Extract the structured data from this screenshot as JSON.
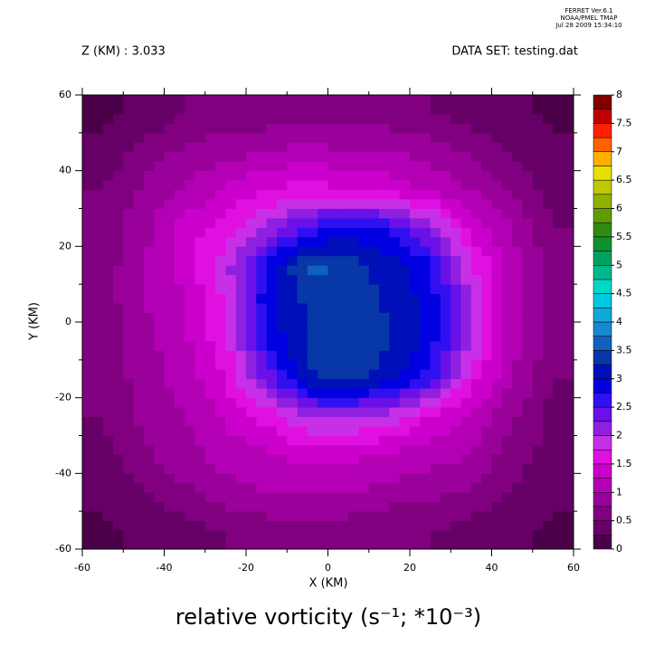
{
  "chart_data": {
    "type": "contour",
    "title": "relative vorticity (s⁻¹; *10⁻³)",
    "annotations": [
      "FERRET  Ver.6.1",
      "NOAA/PMEL TMAP",
      "Jul 28 2009 15:34:10"
    ],
    "subtitle_left": "Z (KM) : 3.033",
    "subtitle_right": "DATA SET: testing.dat",
    "xlabel": "X (KM)",
    "ylabel": "Y (KM)",
    "xlim": [
      -60,
      60
    ],
    "ylim": [
      -60,
      60
    ],
    "xticks": [
      -60,
      -40,
      -20,
      0,
      20,
      40,
      60
    ],
    "yticks": [
      -60,
      -40,
      -20,
      0,
      20,
      40,
      60
    ],
    "xminorticks": [
      -50,
      -30,
      -10,
      10,
      30,
      50
    ],
    "yminorticks": [
      -50,
      -30,
      -10,
      10,
      30,
      50
    ],
    "x": [
      -55,
      -45,
      -35,
      -25,
      -15,
      -5,
      5,
      15,
      25,
      35,
      45,
      55
    ],
    "y": [
      55,
      45,
      35,
      25,
      15,
      5,
      -5,
      -15,
      -25,
      -35,
      -45,
      -55
    ],
    "z": [
      [
        0.2,
        0.3,
        0.5,
        0.6,
        0.6,
        0.7,
        0.7,
        0.6,
        0.5,
        0.4,
        0.3,
        0.2
      ],
      [
        0.3,
        0.6,
        0.8,
        0.9,
        1.0,
        1.1,
        1.0,
        1.0,
        0.9,
        0.7,
        0.5,
        0.3
      ],
      [
        0.5,
        0.8,
        1.0,
        1.3,
        1.5,
        1.6,
        1.5,
        1.4,
        1.2,
        1.0,
        0.7,
        0.4
      ],
      [
        0.6,
        0.9,
        1.4,
        1.6,
        2.0,
        2.6,
        2.8,
        2.7,
        2.2,
        1.4,
        1.0,
        0.5
      ],
      [
        0.6,
        1.0,
        1.4,
        1.9,
        2.8,
        3.6,
        3.4,
        3.1,
        2.8,
        1.8,
        1.1,
        0.6
      ],
      [
        0.6,
        1.0,
        1.2,
        1.8,
        2.9,
        3.3,
        3.4,
        3.2,
        2.9,
        2.0,
        1.1,
        0.6
      ],
      [
        0.6,
        0.9,
        1.2,
        1.7,
        2.8,
        3.3,
        3.4,
        3.3,
        2.9,
        2.0,
        1.1,
        0.6
      ],
      [
        0.5,
        0.9,
        1.1,
        1.5,
        2.3,
        3.2,
        3.4,
        3.1,
        2.6,
        1.6,
        1.0,
        0.5
      ],
      [
        0.5,
        0.8,
        1.0,
        1.3,
        1.6,
        2.0,
        2.1,
        1.9,
        1.5,
        1.2,
        0.8,
        0.4
      ],
      [
        0.4,
        0.7,
        0.9,
        1.1,
        1.2,
        1.4,
        1.3,
        1.2,
        1.1,
        1.0,
        0.6,
        0.4
      ],
      [
        0.3,
        0.5,
        0.7,
        0.9,
        1.0,
        1.0,
        1.0,
        0.9,
        0.8,
        0.7,
        0.5,
        0.3
      ],
      [
        0.2,
        0.3,
        0.4,
        0.5,
        0.6,
        0.6,
        0.6,
        0.5,
        0.5,
        0.4,
        0.3,
        0.2
      ]
    ],
    "levels": [
      0,
      0.25,
      0.5,
      0.75,
      1,
      1.25,
      1.5,
      1.75,
      2,
      2.25,
      2.5,
      2.75,
      3,
      3.25,
      3.5,
      3.75,
      4,
      4.25,
      4.5,
      4.75,
      5,
      5.25,
      5.5,
      5.75,
      6,
      6.25,
      6.5,
      6.75,
      7,
      7.25,
      7.5,
      7.75,
      8
    ],
    "colors": [
      "#4a0048",
      "#660066",
      "#800080",
      "#9a009a",
      "#b400b4",
      "#cc00cc",
      "#e010e0",
      "#c830e8",
      "#9020e0",
      "#6a10e8",
      "#3010f0",
      "#0000e0",
      "#0010b8",
      "#0838a8",
      "#1060c0",
      "#1888d0",
      "#10a8d8",
      "#00c8e0",
      "#00d8c8",
      "#00b890",
      "#00a060",
      "#109030",
      "#308c10",
      "#609c00",
      "#90b000",
      "#c0c800",
      "#e8e000",
      "#ffb000",
      "#ff6000",
      "#ff2000",
      "#c00000",
      "#800000"
    ],
    "colorbar_ticks": [
      0,
      0.5,
      1,
      1.5,
      2,
      2.5,
      3,
      3.5,
      4,
      4.5,
      5,
      5.5,
      6,
      6.5,
      7,
      7.5,
      8
    ]
  }
}
